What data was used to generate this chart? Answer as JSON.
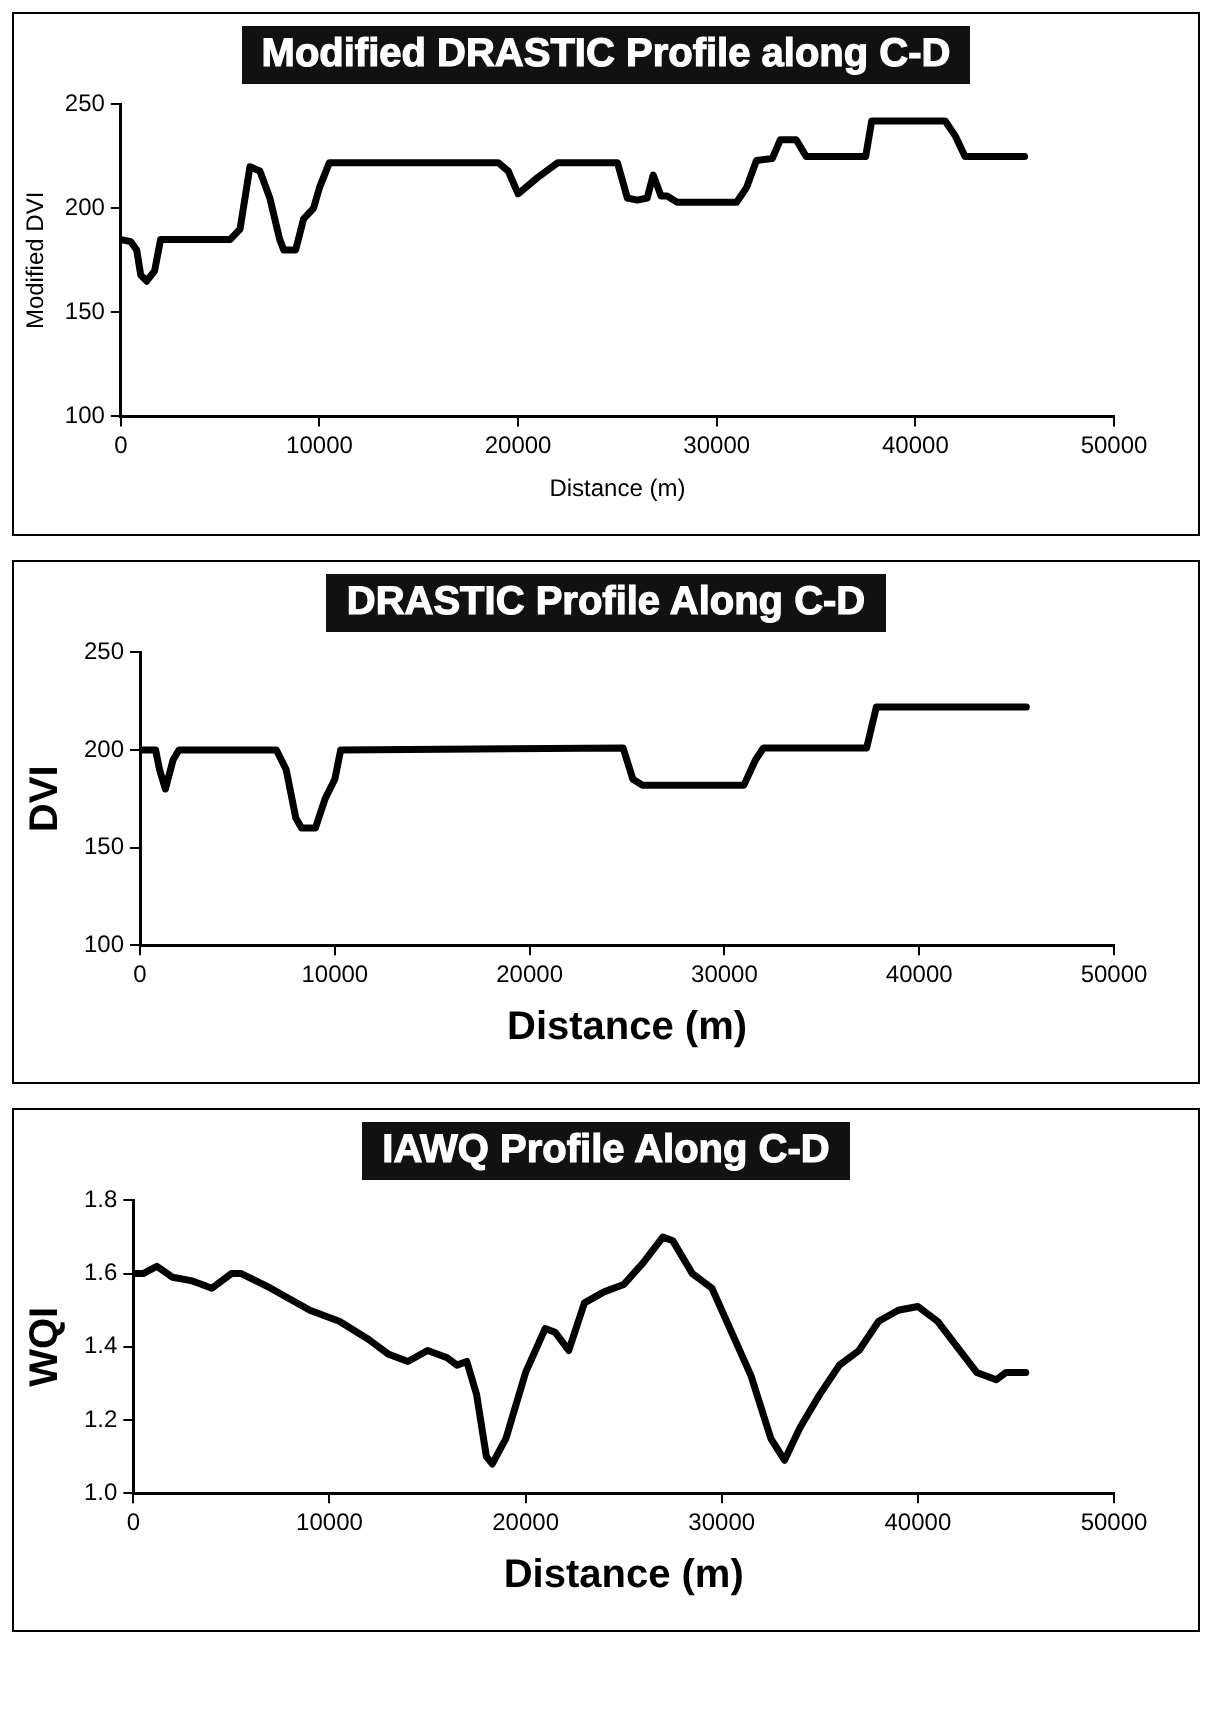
{
  "chart_data": [
    {
      "type": "line",
      "title": "Modified DRASTIC Profile along C-D",
      "xlabel": "Distance (m)",
      "ylabel": "Modified DVI",
      "xlim": [
        0,
        50000
      ],
      "xticks": [
        0,
        10000,
        20000,
        30000,
        40000,
        50000
      ],
      "ylim": [
        100,
        250
      ],
      "yticks": [
        100,
        150,
        200,
        250
      ],
      "grid": false,
      "legend": false,
      "marker": "none",
      "series": [
        {
          "color": "#000000",
          "x": [
            0,
            500,
            800,
            1000,
            1300,
            1700,
            2000,
            5500,
            6000,
            6500,
            7000,
            7500,
            8000,
            8200,
            8800,
            9200,
            9700,
            10000,
            10500,
            19000,
            19500,
            20000,
            21000,
            22000,
            25000,
            25500,
            26000,
            26500,
            26800,
            27200,
            27500,
            28000,
            31000,
            31500,
            32000,
            32800,
            33200,
            34000,
            34500,
            37500,
            37800,
            41500,
            42000,
            42500,
            45500
          ],
          "values": [
            185,
            184,
            180,
            168,
            165,
            170,
            185,
            185,
            190,
            220,
            218,
            205,
            185,
            180,
            180,
            195,
            200,
            210,
            222,
            222,
            218,
            207,
            215,
            222,
            222,
            205,
            204,
            205,
            216,
            206,
            206,
            203,
            203,
            210,
            223,
            224,
            233,
            233,
            225,
            225,
            242,
            242,
            235,
            225,
            225
          ]
        }
      ]
    },
    {
      "type": "line",
      "title": "DRASTIC Profile Along C-D",
      "xlabel": "Distance (m)",
      "ylabel": "DVI",
      "xlim": [
        0,
        50000
      ],
      "xticks": [
        0,
        10000,
        20000,
        30000,
        40000,
        50000
      ],
      "ylim": [
        100,
        250
      ],
      "yticks": [
        100,
        150,
        200,
        250
      ],
      "grid": false,
      "legend": false,
      "marker": "none",
      "series": [
        {
          "color": "#000000",
          "x": [
            0,
            800,
            1000,
            1300,
            1700,
            2000,
            7000,
            7500,
            8000,
            8300,
            9000,
            9500,
            10000,
            10300,
            24800,
            25300,
            25800,
            31000,
            31600,
            32000,
            37300,
            37800,
            45500
          ],
          "values": [
            200,
            200,
            190,
            180,
            195,
            200,
            200,
            190,
            165,
            160,
            160,
            175,
            185,
            200,
            201,
            185,
            182,
            182,
            195,
            201,
            201,
            222,
            222
          ]
        }
      ]
    },
    {
      "type": "line",
      "title": "IAWQ Profile Along C-D",
      "xlabel": "Distance (m)",
      "ylabel": "WQI",
      "xlim": [
        0,
        50000
      ],
      "xticks": [
        0,
        10000,
        20000,
        30000,
        40000,
        50000
      ],
      "ylim": [
        1.0,
        1.8
      ],
      "yticks": [
        {
          "value": 1.0,
          "label": "1.0"
        },
        1.2,
        1.4,
        1.6,
        1.8
      ],
      "grid": false,
      "legend": false,
      "marker": "none",
      "series": [
        {
          "color": "#000000",
          "x": [
            0,
            500,
            1200,
            2000,
            3000,
            3500,
            4000,
            5000,
            5500,
            7000,
            9000,
            10500,
            12000,
            13000,
            14000,
            15000,
            16000,
            16500,
            17000,
            17500,
            18000,
            18300,
            19000,
            20000,
            21000,
            21500,
            22200,
            23000,
            24000,
            25000,
            26000,
            27000,
            27500,
            28500,
            29500,
            30500,
            31500,
            32500,
            33200,
            34000,
            35000,
            36000,
            37000,
            38000,
            39000,
            40000,
            41000,
            42000,
            43000,
            44000,
            44500,
            45500
          ],
          "values": [
            1.6,
            1.6,
            1.62,
            1.59,
            1.58,
            1.57,
            1.56,
            1.6,
            1.6,
            1.56,
            1.5,
            1.47,
            1.42,
            1.38,
            1.36,
            1.39,
            1.37,
            1.35,
            1.36,
            1.27,
            1.1,
            1.08,
            1.15,
            1.33,
            1.45,
            1.44,
            1.39,
            1.52,
            1.55,
            1.57,
            1.63,
            1.7,
            1.69,
            1.6,
            1.56,
            1.44,
            1.32,
            1.15,
            1.09,
            1.18,
            1.27,
            1.35,
            1.39,
            1.47,
            1.5,
            1.51,
            1.47,
            1.4,
            1.33,
            1.31,
            1.33,
            1.33
          ]
        }
      ]
    }
  ]
}
